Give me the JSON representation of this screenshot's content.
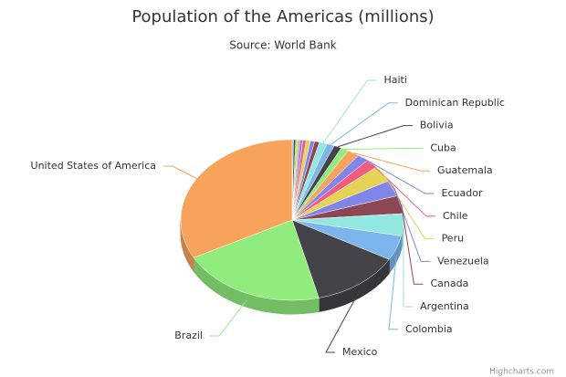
{
  "chart_data": {
    "type": "pie3d",
    "title": "Population of the Americas (millions)",
    "subtitle": "Source: World Bank",
    "credits": "Highcharts.com",
    "categories": [
      null,
      null,
      null,
      null,
      null,
      null,
      null,
      null,
      null,
      "Haiti",
      "Dominican Republic",
      "Bolivia",
      "Cuba",
      "Guatemala",
      "Ecuador",
      "Chile",
      "Peru",
      "Venezuela",
      "Canada",
      "Argentina",
      "Colombia",
      "Mexico",
      "Brazil",
      "United States of America"
    ],
    "values": [
      2,
      3,
      3,
      3,
      4,
      5,
      6,
      6,
      7,
      11,
      11,
      11,
      11,
      17,
      16,
      18,
      32,
      32,
      36,
      44,
      49,
      128,
      208,
      323
    ],
    "colors": [
      "#7cb5ec",
      "#434348",
      "#90ed7d",
      "#f7a35c",
      "#8085e9",
      "#f15c80",
      "#e4d354",
      "#8085e8",
      "#8d4653",
      "#91e8e1"
    ]
  }
}
